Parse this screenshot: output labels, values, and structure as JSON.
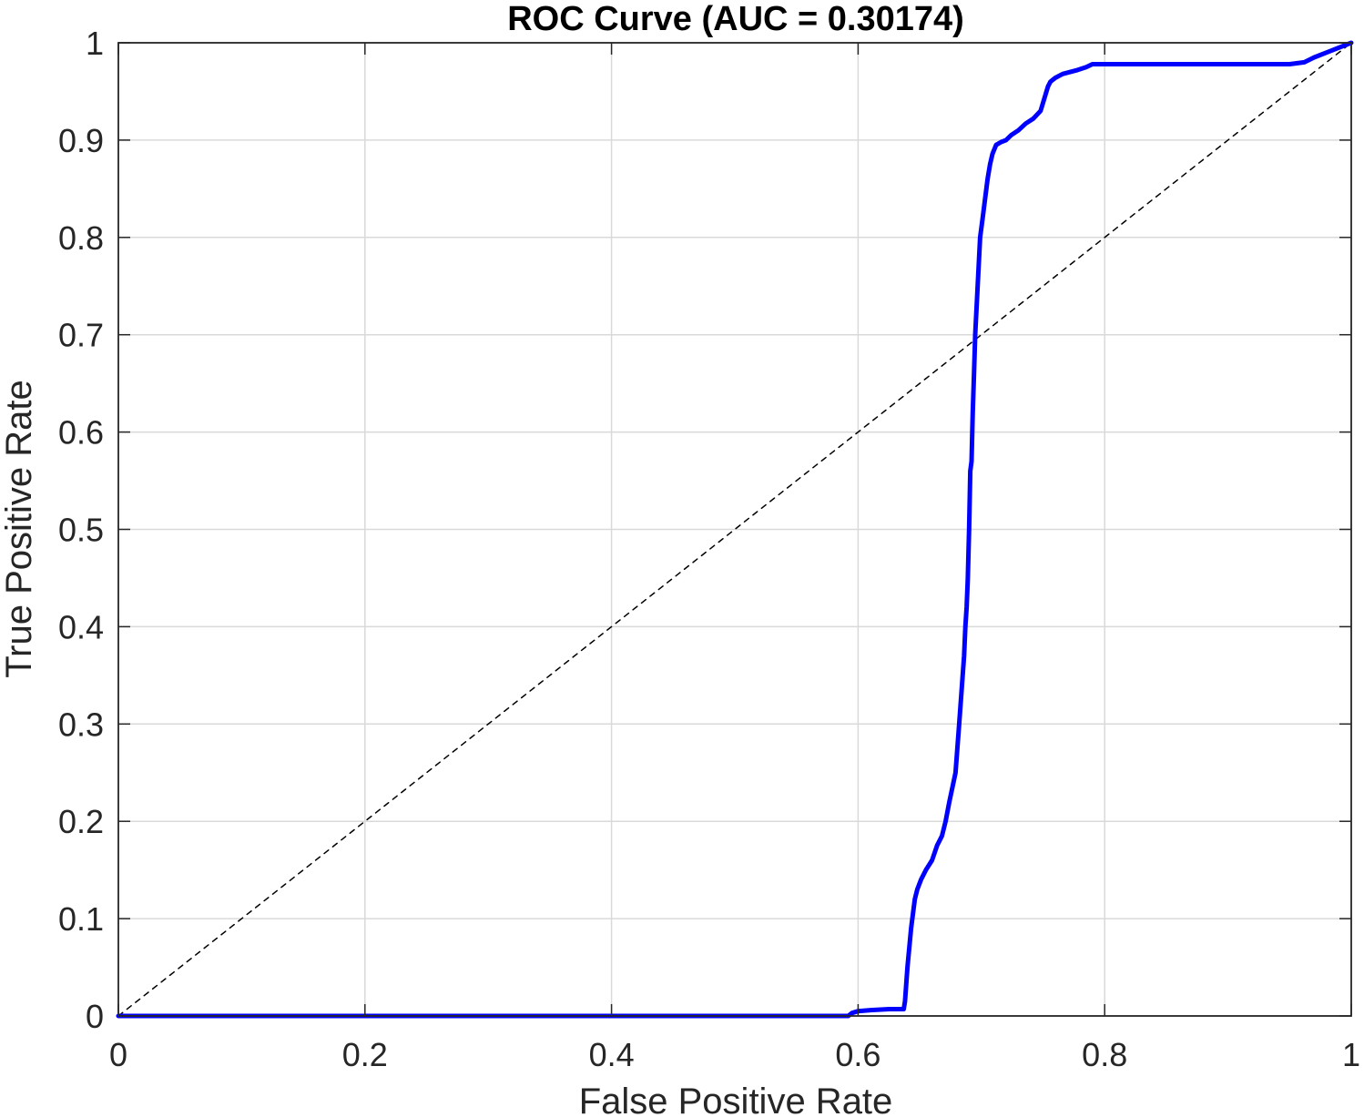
{
  "chart_data": {
    "type": "line",
    "title": "ROC Curve (AUC = 0.30174)",
    "xlabel": "False Positive Rate",
    "ylabel": "True Positive Rate",
    "xlim": [
      0,
      1
    ],
    "ylim": [
      0,
      1
    ],
    "grid": true,
    "x_ticks": [
      "0",
      "0.2",
      "0.4",
      "0.6",
      "0.8",
      "1"
    ],
    "y_ticks": [
      "0",
      "0.1",
      "0.2",
      "0.3",
      "0.4",
      "0.5",
      "0.6",
      "0.7",
      "0.8",
      "0.9",
      "1"
    ],
    "x_tick_values": [
      0,
      0.2,
      0.4,
      0.6,
      0.8,
      1
    ],
    "y_tick_values": [
      0,
      0.1,
      0.2,
      0.3,
      0.4,
      0.5,
      0.6,
      0.7,
      0.8,
      0.9,
      1
    ],
    "series": [
      {
        "color": "#0000ff",
        "style": "solid",
        "x": [
          0,
          0.592,
          0.595,
          0.6,
          0.61,
          0.625,
          0.637,
          0.638,
          0.64,
          0.643,
          0.646,
          0.648,
          0.651,
          0.655,
          0.66,
          0.664,
          0.668,
          0.671,
          0.674,
          0.679,
          0.682,
          0.686,
          0.687,
          0.688,
          0.689,
          0.69,
          0.691,
          0.692,
          0.693,
          0.694,
          0.695,
          0.697,
          0.699,
          0.701,
          0.703,
          0.705,
          0.707,
          0.709,
          0.712,
          0.716,
          0.72,
          0.724,
          0.73,
          0.736,
          0.742,
          0.748,
          0.754,
          0.756,
          0.758,
          0.76,
          0.763,
          0.766,
          0.772,
          0.778,
          0.785,
          0.79,
          0.795,
          0.8,
          0.85,
          0.9,
          0.95,
          0.962,
          0.97,
          0.98,
          0.99,
          1.0
        ],
        "y": [
          0,
          0,
          0.003,
          0.005,
          0.006,
          0.007,
          0.007,
          0.015,
          0.05,
          0.09,
          0.12,
          0.13,
          0.14,
          0.15,
          0.16,
          0.175,
          0.185,
          0.2,
          0.22,
          0.25,
          0.3,
          0.37,
          0.4,
          0.42,
          0.45,
          0.5,
          0.56,
          0.57,
          0.62,
          0.66,
          0.7,
          0.75,
          0.8,
          0.82,
          0.84,
          0.86,
          0.875,
          0.886,
          0.895,
          0.898,
          0.9,
          0.905,
          0.91,
          0.917,
          0.922,
          0.93,
          0.955,
          0.96,
          0.962,
          0.964,
          0.966,
          0.968,
          0.97,
          0.972,
          0.975,
          0.978,
          0.978,
          0.978,
          0.978,
          0.978,
          0.978,
          0.98,
          0.985,
          0.99,
          0.995,
          1.0
        ]
      },
      {
        "color": "#000000",
        "style": "dashed",
        "x": [
          0,
          1
        ],
        "y": [
          0,
          1
        ]
      }
    ]
  }
}
